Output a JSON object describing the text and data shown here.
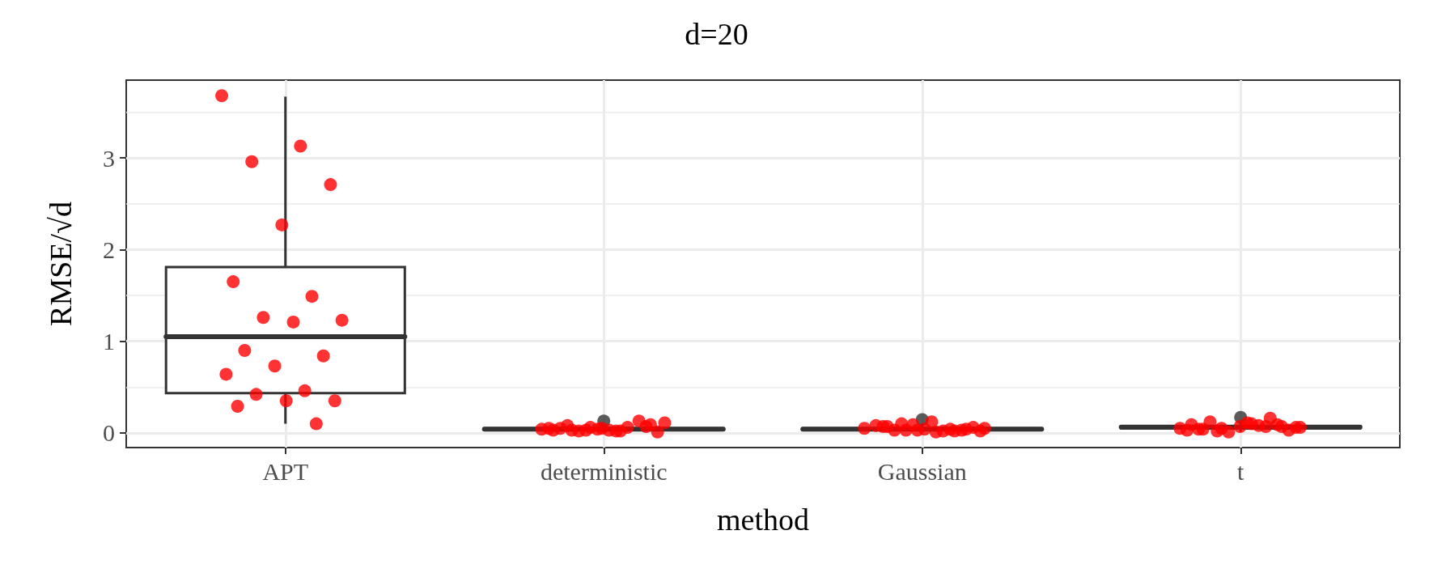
{
  "chart_data": {
    "type": "box",
    "title": "d=20",
    "xlabel": "method",
    "ylabel": "RMSE/√d",
    "categories": [
      "APT",
      "deterministic",
      "Gaussian",
      "t"
    ],
    "ylim": [
      -0.16,
      3.85
    ],
    "yticks": [
      0,
      1,
      2,
      3
    ],
    "grid": true,
    "series": [
      {
        "color": "#333333",
        "boxes": [
          {
            "low": 0.1,
            "q1": 0.435,
            "median": 1.05,
            "q3": 1.81,
            "high": 3.67
          },
          {
            "low": 0.01,
            "q1": 0.03,
            "median": 0.04,
            "q3": 0.05,
            "high": 0.09,
            "outliers": [
              0.13
            ]
          },
          {
            "low": 0.01,
            "q1": 0.03,
            "median": 0.04,
            "q3": 0.05,
            "high": 0.1,
            "outliers": [
              0.145
            ]
          },
          {
            "low": 0.01,
            "q1": 0.05,
            "median": 0.063,
            "q3": 0.075,
            "high": 0.12,
            "outliers": [
              0.17
            ]
          }
        ]
      },
      {
        "type": "scatter",
        "color": "#ff0000",
        "marker": "circle",
        "x": [
          "APT",
          "APT",
          "APT",
          "APT",
          "APT",
          "APT",
          "APT",
          "APT",
          "APT",
          "APT",
          "APT",
          "APT",
          "APT",
          "APT",
          "APT",
          "APT",
          "APT",
          "APT",
          "APT",
          "APT",
          "deterministic",
          "deterministic",
          "deterministic",
          "deterministic",
          "deterministic",
          "deterministic",
          "deterministic",
          "deterministic",
          "deterministic",
          "deterministic",
          "deterministic",
          "deterministic",
          "deterministic",
          "deterministic",
          "deterministic",
          "deterministic",
          "deterministic",
          "deterministic",
          "deterministic",
          "deterministic",
          "Gaussian",
          "Gaussian",
          "Gaussian",
          "Gaussian",
          "Gaussian",
          "Gaussian",
          "Gaussian",
          "Gaussian",
          "Gaussian",
          "Gaussian",
          "Gaussian",
          "Gaussian",
          "Gaussian",
          "Gaussian",
          "Gaussian",
          "Gaussian",
          "Gaussian",
          "Gaussian",
          "Gaussian",
          "Gaussian",
          "t",
          "t",
          "t",
          "t",
          "t",
          "t",
          "t",
          "t",
          "t",
          "t",
          "t",
          "t",
          "t",
          "t",
          "t",
          "t",
          "t",
          "t",
          "t",
          "t"
        ],
        "values": [
          3.68,
          3.13,
          2.96,
          2.71,
          2.27,
          1.65,
          1.49,
          1.26,
          1.23,
          1.21,
          0.9,
          0.84,
          0.73,
          0.64,
          0.46,
          0.42,
          0.35,
          0.35,
          0.29,
          0.1,
          0.03,
          0.11,
          0.02,
          0.08,
          0.07,
          0.04,
          0.05,
          0.06,
          0.02,
          0.01,
          0.03,
          0.05,
          0.13,
          0.06,
          0.04,
          0.02,
          0.03,
          0.09,
          0.05,
          0.03,
          0.04,
          0.1,
          0.02,
          0.12,
          0.07,
          0.03,
          0.09,
          0.05,
          0.02,
          0.03,
          0.06,
          0.04,
          0.08,
          0.02,
          0.03,
          0.05,
          0.01,
          0.07,
          0.04,
          0.03,
          0.03,
          0.07,
          0.02,
          0.06,
          0.11,
          0.04,
          0.09,
          0.01,
          0.05,
          0.08,
          0.12,
          0.03,
          0.07,
          0.09,
          0.16,
          0.05,
          0.06,
          0.1,
          0.04,
          0.07
        ]
      }
    ]
  }
}
